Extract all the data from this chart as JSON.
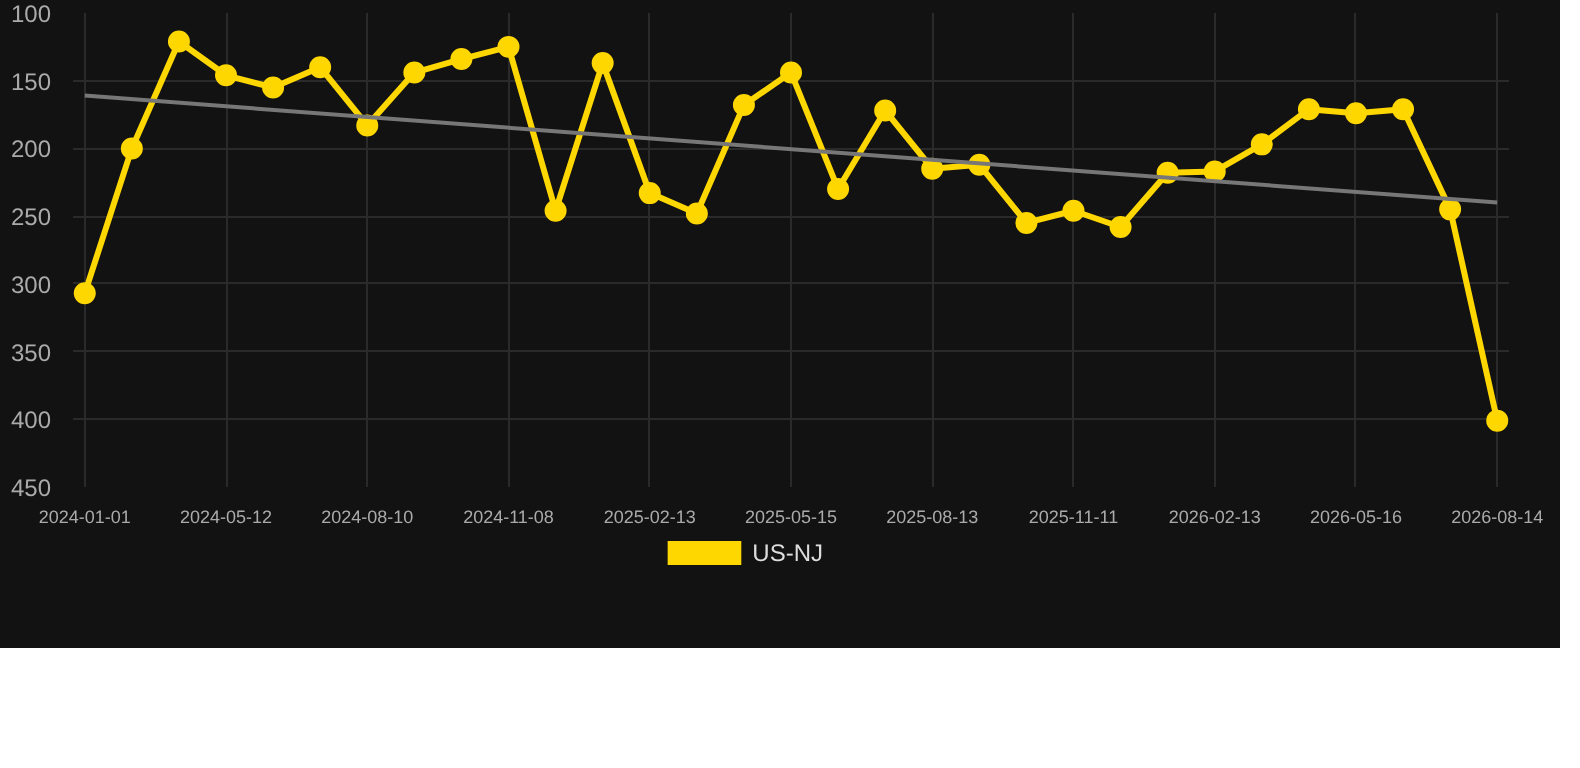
{
  "chart_data": {
    "type": "line",
    "categories": [
      "2024-01-01",
      null,
      null,
      "2024-05-12",
      null,
      null,
      "2024-08-10",
      null,
      null,
      "2024-11-08",
      null,
      null,
      "2025-02-13",
      null,
      null,
      "2025-05-15",
      null,
      null,
      "2025-08-13",
      null,
      null,
      "2025-11-11",
      null,
      null,
      "2026-02-13",
      null,
      null,
      "2026-05-16",
      null,
      null,
      "2026-08-14"
    ],
    "series": [
      {
        "name": "US-NJ",
        "color": "#ffd700",
        "marker": "circle",
        "values": [
          307,
          200,
          121,
          146,
          155,
          140,
          183,
          144,
          134,
          125,
          246,
          137,
          233,
          248,
          168,
          144,
          230,
          172,
          215,
          212,
          255,
          246,
          258,
          218,
          217,
          197,
          171,
          174,
          171,
          245,
          401
        ]
      },
      {
        "type": "line",
        "color": "#777777",
        "marker": "none",
        "values": [
          161,
          null,
          null,
          null,
          null,
          null,
          null,
          null,
          null,
          null,
          null,
          null,
          null,
          null,
          null,
          null,
          null,
          null,
          null,
          null,
          null,
          null,
          null,
          null,
          null,
          null,
          null,
          null,
          null,
          null,
          240
        ]
      }
    ],
    "ylim": [
      450,
      100
    ],
    "yticks": [
      100,
      150,
      200,
      250,
      300,
      350,
      400,
      450
    ],
    "grid": true,
    "legend": "bottom"
  }
}
